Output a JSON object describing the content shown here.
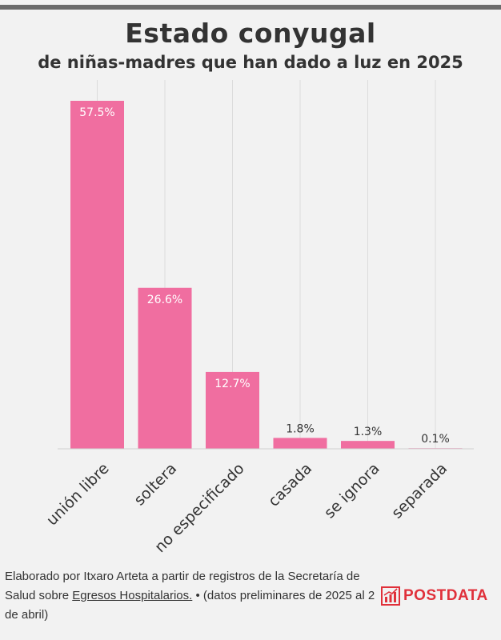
{
  "header": {
    "title": "Estado conyugal",
    "subtitle": "de niñas-madres que han dado a luz en 2025"
  },
  "chart_data": {
    "type": "bar",
    "title": "Estado conyugal",
    "subtitle": "de niñas-madres que han dado a luz en 2025",
    "categories": [
      "unión libre",
      "soltera",
      "no especificado",
      "casada",
      "se ignora",
      "separada"
    ],
    "values": [
      57.5,
      26.6,
      12.7,
      1.8,
      1.3,
      0.1
    ],
    "value_labels": [
      "57.5%",
      "26.6%",
      "12.7%",
      "1.8%",
      "1.3%",
      "0.1%"
    ],
    "xlabel": "",
    "ylabel": "",
    "ylim": [
      0,
      57.5
    ],
    "grid": true,
    "colors": {
      "bar": "#f06ea0",
      "label_inside": "#ffffff",
      "label_outside": "#333333",
      "grid": "#dcdcdc"
    }
  },
  "footer": {
    "text_before_link": "Elaborado por Itxaro Arteta a partir de registros de la Secretaría de Salud sobre ",
    "link_text": "Egresos Hospitalarios.",
    "text_after_link": " • (datos preliminares de 2025 al 2 de abril)"
  },
  "logo": {
    "text": "POSTDATA",
    "icon": "bar-chart-logo-icon",
    "color": "#e0303a"
  }
}
